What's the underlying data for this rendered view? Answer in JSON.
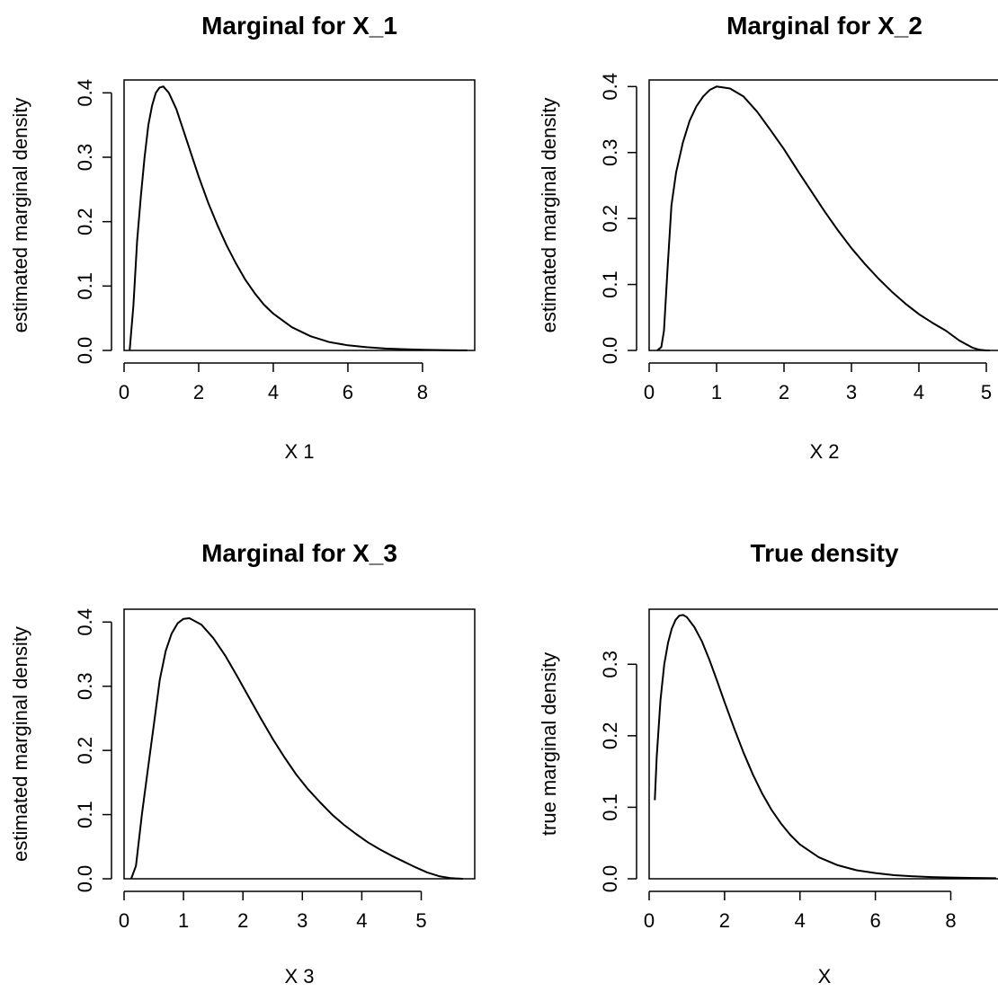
{
  "chart_data": [
    {
      "type": "line",
      "title": "Marginal for X_1",
      "xlabel": "X 1",
      "ylabel": "estimated marginal density",
      "xlim": [
        0,
        9.4
      ],
      "ylim": [
        0,
        0.42
      ],
      "xticks": [
        0,
        2,
        4,
        6,
        8
      ],
      "yticks": [
        0.0,
        0.1,
        0.2,
        0.3,
        0.4
      ],
      "grid": false,
      "series": [
        {
          "x": [
            0.15,
            0.25,
            0.35,
            0.45,
            0.55,
            0.65,
            0.75,
            0.85,
            0.95,
            1.05,
            1.2,
            1.4,
            1.6,
            1.8,
            2.0,
            2.25,
            2.5,
            2.75,
            3.0,
            3.25,
            3.5,
            3.75,
            4.0,
            4.5,
            5.0,
            5.5,
            6.0,
            6.5,
            7.0,
            7.5,
            8.0,
            8.5,
            9.0,
            9.2
          ],
          "y": [
            0.0,
            0.07,
            0.17,
            0.24,
            0.3,
            0.35,
            0.38,
            0.4,
            0.408,
            0.41,
            0.4,
            0.375,
            0.34,
            0.305,
            0.27,
            0.23,
            0.195,
            0.163,
            0.135,
            0.11,
            0.089,
            0.071,
            0.057,
            0.036,
            0.022,
            0.013,
            0.008,
            0.005,
            0.003,
            0.002,
            0.001,
            0.0005,
            0.0002,
            0.0001
          ]
        }
      ]
    },
    {
      "type": "line",
      "title": "Marginal for X_2",
      "xlabel": "X 2",
      "ylabel": "estimated marginal density",
      "xlim": [
        0,
        5.2
      ],
      "ylim": [
        0,
        0.41
      ],
      "xticks": [
        0,
        1,
        2,
        3,
        4,
        5
      ],
      "yticks": [
        0.0,
        0.1,
        0.2,
        0.3,
        0.4
      ],
      "grid": false,
      "series": [
        {
          "x": [
            0.12,
            0.18,
            0.22,
            0.27,
            0.33,
            0.4,
            0.5,
            0.6,
            0.7,
            0.8,
            0.9,
            1.0,
            1.2,
            1.4,
            1.6,
            1.8,
            2.0,
            2.2,
            2.4,
            2.6,
            2.8,
            3.0,
            3.2,
            3.4,
            3.6,
            3.8,
            4.0,
            4.2,
            4.4,
            4.6,
            4.8,
            4.9,
            5.0,
            5.05
          ],
          "y": [
            0.0,
            0.005,
            0.03,
            0.12,
            0.22,
            0.27,
            0.315,
            0.348,
            0.37,
            0.385,
            0.395,
            0.4,
            0.397,
            0.385,
            0.362,
            0.334,
            0.305,
            0.273,
            0.242,
            0.211,
            0.182,
            0.155,
            0.131,
            0.109,
            0.089,
            0.071,
            0.055,
            0.042,
            0.03,
            0.015,
            0.004,
            0.001,
            0.0,
            0.0
          ]
        }
      ]
    },
    {
      "type": "line",
      "title": "Marginal for X_3",
      "xlabel": "X 3",
      "ylabel": "estimated marginal density",
      "xlim": [
        0,
        5.9
      ],
      "ylim": [
        0,
        0.42
      ],
      "xticks": [
        0,
        1,
        2,
        3,
        4,
        5
      ],
      "yticks": [
        0.0,
        0.1,
        0.2,
        0.3,
        0.4
      ],
      "grid": false,
      "series": [
        {
          "x": [
            0.12,
            0.2,
            0.3,
            0.4,
            0.5,
            0.6,
            0.7,
            0.8,
            0.9,
            1.0,
            1.1,
            1.3,
            1.5,
            1.7,
            1.9,
            2.1,
            2.3,
            2.5,
            2.7,
            2.9,
            3.1,
            3.3,
            3.5,
            3.7,
            3.9,
            4.1,
            4.3,
            4.5,
            4.7,
            4.9,
            5.1,
            5.3,
            5.5,
            5.7
          ],
          "y": [
            0.0,
            0.02,
            0.1,
            0.17,
            0.24,
            0.31,
            0.355,
            0.382,
            0.398,
            0.405,
            0.406,
            0.396,
            0.375,
            0.348,
            0.316,
            0.283,
            0.25,
            0.218,
            0.189,
            0.162,
            0.139,
            0.119,
            0.1,
            0.084,
            0.07,
            0.057,
            0.046,
            0.036,
            0.027,
            0.018,
            0.01,
            0.004,
            0.001,
            0.0
          ]
        }
      ]
    },
    {
      "type": "line",
      "title": "True density",
      "xlabel": "X",
      "ylabel": "true marginal density",
      "xlim": [
        0,
        9.3
      ],
      "ylim": [
        0,
        0.377
      ],
      "xticks": [
        0,
        2,
        4,
        6,
        8
      ],
      "yticks": [
        0.0,
        0.1,
        0.2,
        0.3
      ],
      "grid": false,
      "series": [
        {
          "x": [
            0.15,
            0.2,
            0.3,
            0.4,
            0.5,
            0.6,
            0.7,
            0.8,
            0.9,
            1.0,
            1.2,
            1.4,
            1.6,
            1.8,
            2.0,
            2.25,
            2.5,
            2.75,
            3.0,
            3.25,
            3.5,
            3.75,
            4.0,
            4.5,
            5.0,
            5.5,
            6.0,
            6.5,
            7.0,
            7.5,
            8.0,
            8.5,
            9.0,
            9.2
          ],
          "y": [
            0.11,
            0.17,
            0.25,
            0.3,
            0.33,
            0.35,
            0.362,
            0.368,
            0.369,
            0.366,
            0.352,
            0.332,
            0.306,
            0.277,
            0.247,
            0.211,
            0.177,
            0.146,
            0.119,
            0.096,
            0.077,
            0.061,
            0.048,
            0.03,
            0.019,
            0.012,
            0.008,
            0.005,
            0.0035,
            0.0024,
            0.0017,
            0.0012,
            0.0009,
            0.0008
          ]
        }
      ]
    }
  ]
}
